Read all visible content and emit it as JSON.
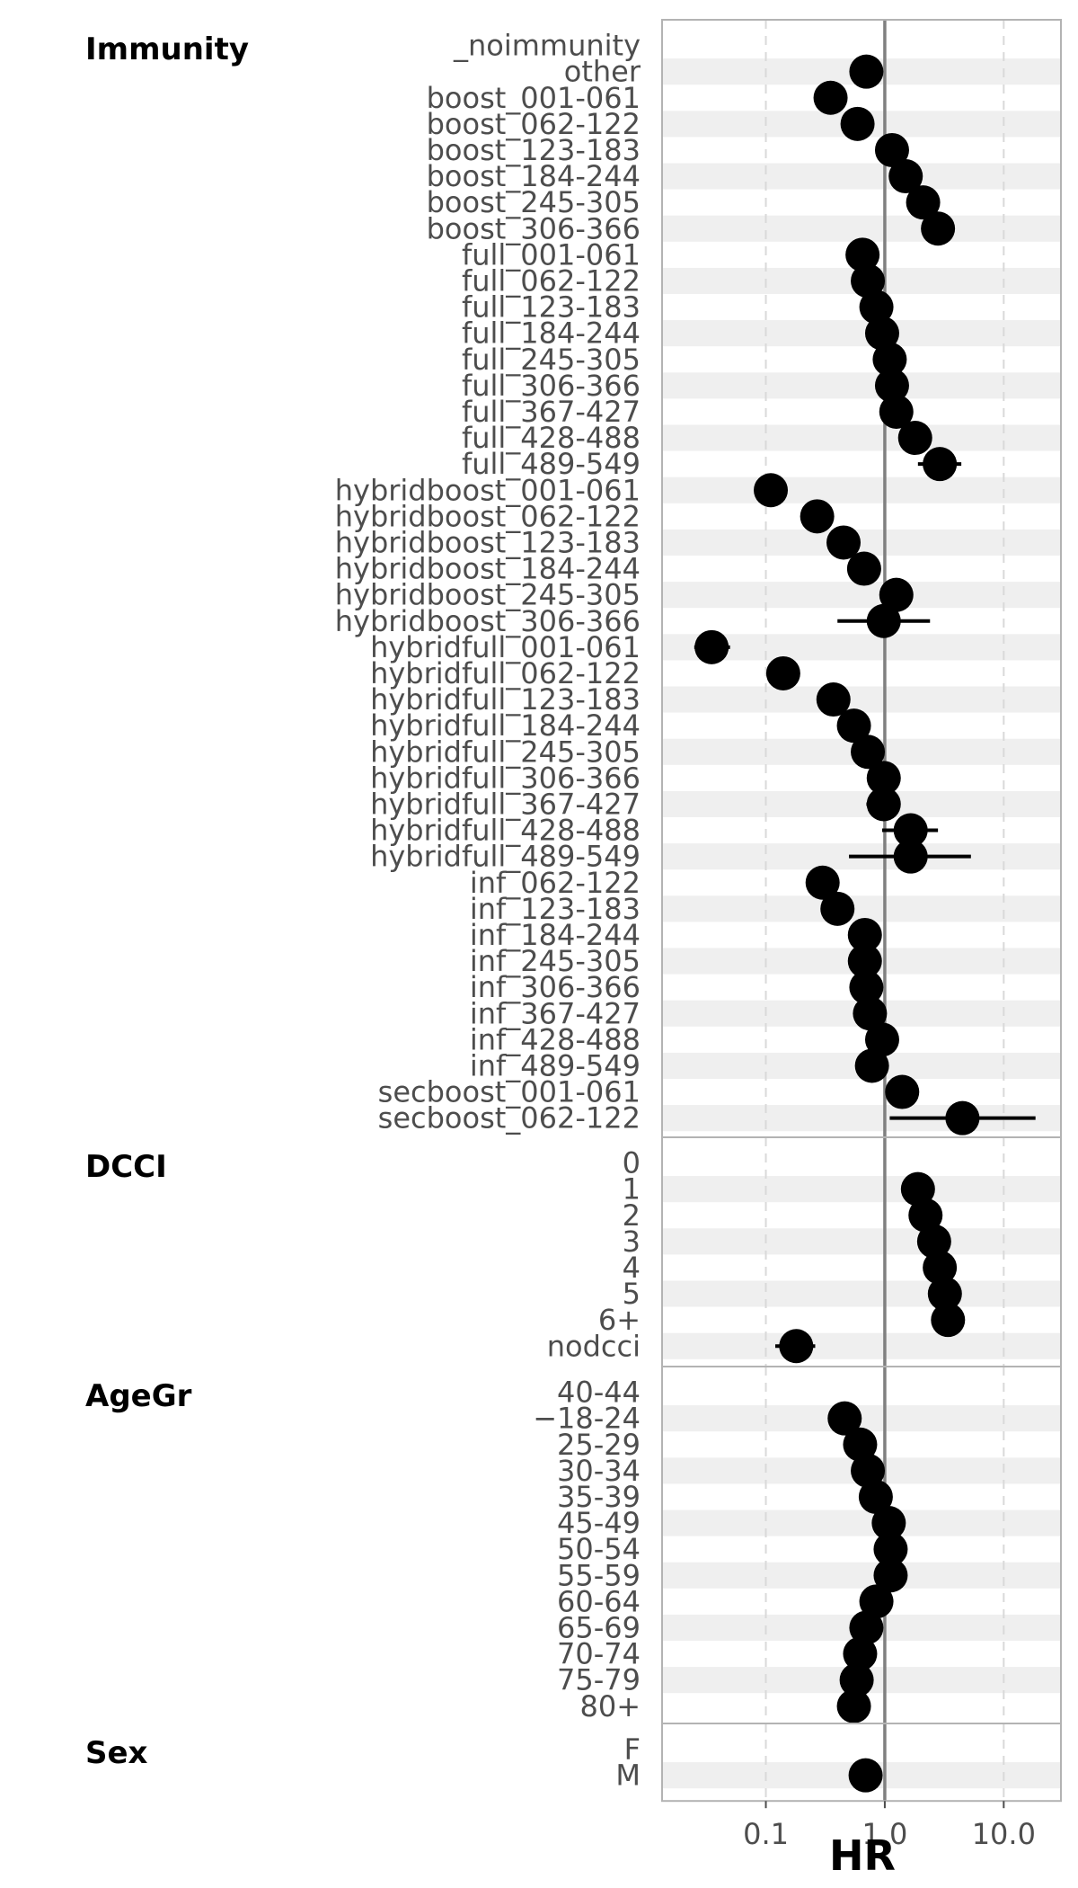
{
  "chart_data": {
    "type": "scatter",
    "subtype": "forest-plot",
    "xlabel": "HR",
    "x_scale": "log10",
    "xlim": [
      0.02,
      25
    ],
    "x_ticks": [
      {
        "value": 0.1,
        "label": "0.1"
      },
      {
        "value": 1.0,
        "label": "1.0"
      },
      {
        "value": 10.0,
        "label": "10.0"
      }
    ],
    "reference_line": 1.0,
    "colors": {
      "point": "#000000",
      "stripe": "#efefef",
      "panel_border": "#b3b3b3",
      "reference": "#808080",
      "grid": "#d9d9d9",
      "label": "#4d4d4d"
    },
    "groups": [
      {
        "name": "Immunity",
        "rows": [
          {
            "label": "_noimmunity",
            "hr": null,
            "lo": null,
            "hi": null
          },
          {
            "label": "other",
            "hr": 0.7,
            "lo": 0.66,
            "hi": 0.74
          },
          {
            "label": "boost_001-061",
            "hr": 0.35,
            "lo": 0.33,
            "hi": 0.37
          },
          {
            "label": "boost_062-122",
            "hr": 0.59,
            "lo": 0.56,
            "hi": 0.62
          },
          {
            "label": "boost_123-183",
            "hr": 1.15,
            "lo": 1.1,
            "hi": 1.2
          },
          {
            "label": "boost_184-244",
            "hr": 1.5,
            "lo": 1.43,
            "hi": 1.57
          },
          {
            "label": "boost_245-305",
            "hr": 2.1,
            "lo": 2.0,
            "hi": 2.2
          },
          {
            "label": "boost_306-366",
            "hr": 2.8,
            "lo": 2.6,
            "hi": 3.0
          },
          {
            "label": "full_001-061",
            "hr": 0.65,
            "lo": 0.62,
            "hi": 0.68
          },
          {
            "label": "full_062-122",
            "hr": 0.72,
            "lo": 0.69,
            "hi": 0.75
          },
          {
            "label": "full_123-183",
            "hr": 0.85,
            "lo": 0.82,
            "hi": 0.88
          },
          {
            "label": "full_184-244",
            "hr": 0.95,
            "lo": 0.92,
            "hi": 0.98
          },
          {
            "label": "full_245-305",
            "hr": 1.1,
            "lo": 1.06,
            "hi": 1.14
          },
          {
            "label": "full_306-366",
            "hr": 1.15,
            "lo": 1.1,
            "hi": 1.2
          },
          {
            "label": "full_367-427",
            "hr": 1.25,
            "lo": 1.18,
            "hi": 1.32
          },
          {
            "label": "full_428-488",
            "hr": 1.8,
            "lo": 1.65,
            "hi": 1.95
          },
          {
            "label": "full_489-549",
            "hr": 2.9,
            "lo": 1.9,
            "hi": 4.4
          },
          {
            "label": "hybridboost_001-061",
            "hr": 0.11,
            "lo": 0.1,
            "hi": 0.12
          },
          {
            "label": "hybridboost_062-122",
            "hr": 0.27,
            "lo": 0.25,
            "hi": 0.29
          },
          {
            "label": "hybridboost_123-183",
            "hr": 0.45,
            "lo": 0.43,
            "hi": 0.47
          },
          {
            "label": "hybridboost_184-244",
            "hr": 0.67,
            "lo": 0.64,
            "hi": 0.7
          },
          {
            "label": "hybridboost_245-305",
            "hr": 1.25,
            "lo": 1.1,
            "hi": 1.4
          },
          {
            "label": "hybridboost_306-366",
            "hr": 0.98,
            "lo": 0.4,
            "hi": 2.4
          },
          {
            "label": "hybridfull_001-061",
            "hr": 0.035,
            "lo": 0.025,
            "hi": 0.05
          },
          {
            "label": "hybridfull_062-122",
            "hr": 0.14,
            "lo": 0.13,
            "hi": 0.15
          },
          {
            "label": "hybridfull_123-183",
            "hr": 0.37,
            "lo": 0.35,
            "hi": 0.39
          },
          {
            "label": "hybridfull_184-244",
            "hr": 0.55,
            "lo": 0.52,
            "hi": 0.58
          },
          {
            "label": "hybridfull_245-305",
            "hr": 0.72,
            "lo": 0.68,
            "hi": 0.76
          },
          {
            "label": "hybridfull_306-366",
            "hr": 0.98,
            "lo": 0.92,
            "hi": 1.04
          },
          {
            "label": "hybridfull_367-427",
            "hr": 0.98,
            "lo": 0.7,
            "hi": 1.35
          },
          {
            "label": "hybridfull_428-488",
            "hr": 1.65,
            "lo": 0.95,
            "hi": 2.8
          },
          {
            "label": "hybridfull_489-549",
            "hr": 1.65,
            "lo": 0.5,
            "hi": 5.3
          },
          {
            "label": "inf_062-122",
            "hr": 0.3,
            "lo": 0.28,
            "hi": 0.32
          },
          {
            "label": "inf_123-183",
            "hr": 0.4,
            "lo": 0.38,
            "hi": 0.42
          },
          {
            "label": "inf_184-244",
            "hr": 0.68,
            "lo": 0.65,
            "hi": 0.71
          },
          {
            "label": "inf_245-305",
            "hr": 0.68,
            "lo": 0.65,
            "hi": 0.71
          },
          {
            "label": "inf_306-366",
            "hr": 0.7,
            "lo": 0.67,
            "hi": 0.73
          },
          {
            "label": "inf_367-427",
            "hr": 0.75,
            "lo": 0.72,
            "hi": 0.78
          },
          {
            "label": "inf_428-488",
            "hr": 0.95,
            "lo": 0.9,
            "hi": 1.0
          },
          {
            "label": "inf_489-549",
            "hr": 0.78,
            "lo": 0.74,
            "hi": 0.82
          },
          {
            "label": "secboost_001-061",
            "hr": 1.4,
            "lo": 1.3,
            "hi": 1.5
          },
          {
            "label": "secboost_062-122",
            "hr": 4.5,
            "lo": 1.1,
            "hi": 18.5
          }
        ]
      },
      {
        "name": "DCCI",
        "rows": [
          {
            "label": "0",
            "hr": null,
            "lo": null,
            "hi": null
          },
          {
            "label": "1",
            "hr": 1.9,
            "lo": 1.8,
            "hi": 2.0
          },
          {
            "label": "2",
            "hr": 2.2,
            "lo": 2.1,
            "hi": 2.3
          },
          {
            "label": "3",
            "hr": 2.6,
            "lo": 2.5,
            "hi": 2.7
          },
          {
            "label": "4",
            "hr": 2.9,
            "lo": 2.75,
            "hi": 3.05
          },
          {
            "label": "5",
            "hr": 3.2,
            "lo": 3.0,
            "hi": 3.4
          },
          {
            "label": "6+",
            "hr": 3.4,
            "lo": 3.2,
            "hi": 3.6
          },
          {
            "label": "nodcci",
            "hr": 0.18,
            "lo": 0.12,
            "hi": 0.26
          }
        ]
      },
      {
        "name": "AgeGr",
        "rows": [
          {
            "label": "40-44",
            "hr": null,
            "lo": null,
            "hi": null
          },
          {
            "label": "−18-24",
            "hr": 0.46,
            "lo": 0.44,
            "hi": 0.48
          },
          {
            "label": "25-29",
            "hr": 0.62,
            "lo": 0.6,
            "hi": 0.64
          },
          {
            "label": "30-34",
            "hr": 0.72,
            "lo": 0.7,
            "hi": 0.74
          },
          {
            "label": "35-39",
            "hr": 0.84,
            "lo": 0.82,
            "hi": 0.86
          },
          {
            "label": "45-49",
            "hr": 1.08,
            "lo": 1.05,
            "hi": 1.11
          },
          {
            "label": "50-54",
            "hr": 1.12,
            "lo": 1.09,
            "hi": 1.15
          },
          {
            "label": "55-59",
            "hr": 1.12,
            "lo": 1.09,
            "hi": 1.15
          },
          {
            "label": "60-64",
            "hr": 0.85,
            "lo": 0.82,
            "hi": 0.88
          },
          {
            "label": "65-69",
            "hr": 0.7,
            "lo": 0.68,
            "hi": 0.72
          },
          {
            "label": "70-74",
            "hr": 0.62,
            "lo": 0.6,
            "hi": 0.64
          },
          {
            "label": "75-79",
            "hr": 0.58,
            "lo": 0.56,
            "hi": 0.6
          },
          {
            "label": "80+",
            "hr": 0.55,
            "lo": 0.52,
            "hi": 0.58
          }
        ]
      },
      {
        "name": "Sex",
        "rows": [
          {
            "label": "F",
            "hr": null,
            "lo": null,
            "hi": null
          },
          {
            "label": "M",
            "hr": 0.69,
            "lo": 0.67,
            "hi": 0.71
          }
        ]
      }
    ]
  }
}
